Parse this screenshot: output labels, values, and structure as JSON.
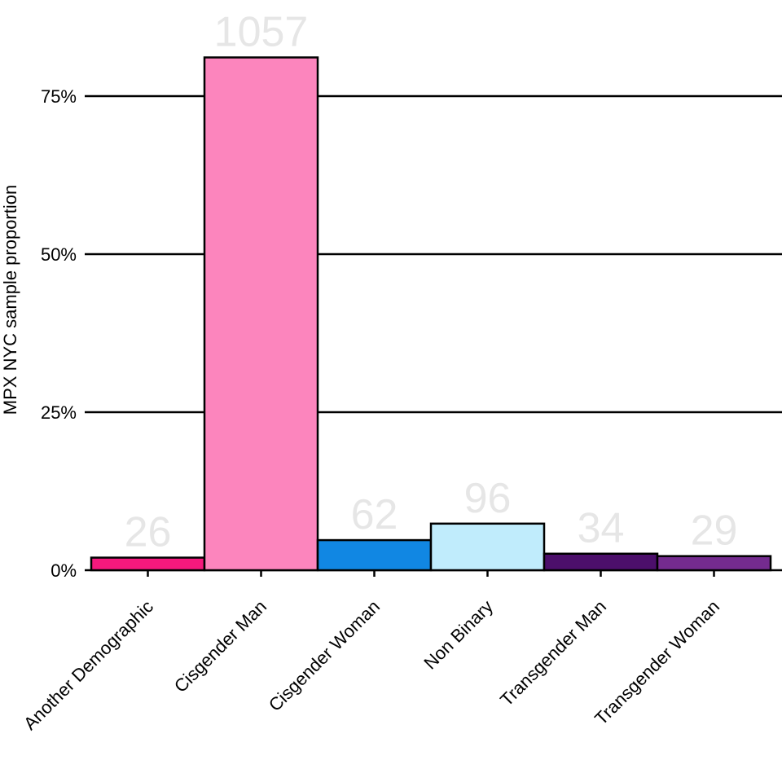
{
  "chart_data": {
    "type": "bar",
    "ylabel": "MPX NYC sample proportion",
    "ylim": [
      0,
      0.85
    ],
    "yticks": [
      0,
      0.25,
      0.5,
      0.75
    ],
    "ytick_labels": [
      "0%",
      "25%",
      "50%",
      "75%"
    ],
    "categories": [
      "Another Demographic",
      "Cisgender Man",
      "Cisgender Woman",
      "Non Binary",
      "Transgender Man",
      "Transgender Woman"
    ],
    "counts": [
      "26",
      "1057",
      "62",
      "96",
      "34",
      "29"
    ],
    "values": [
      0.0199,
      0.8112,
      0.0476,
      0.0737,
      0.0261,
      0.0223
    ],
    "colors": [
      "#f5197d",
      "#fc85bd",
      "#1187e3",
      "#c0ecfc",
      "#4c0f6b",
      "#742b8f"
    ],
    "grid": true
  }
}
